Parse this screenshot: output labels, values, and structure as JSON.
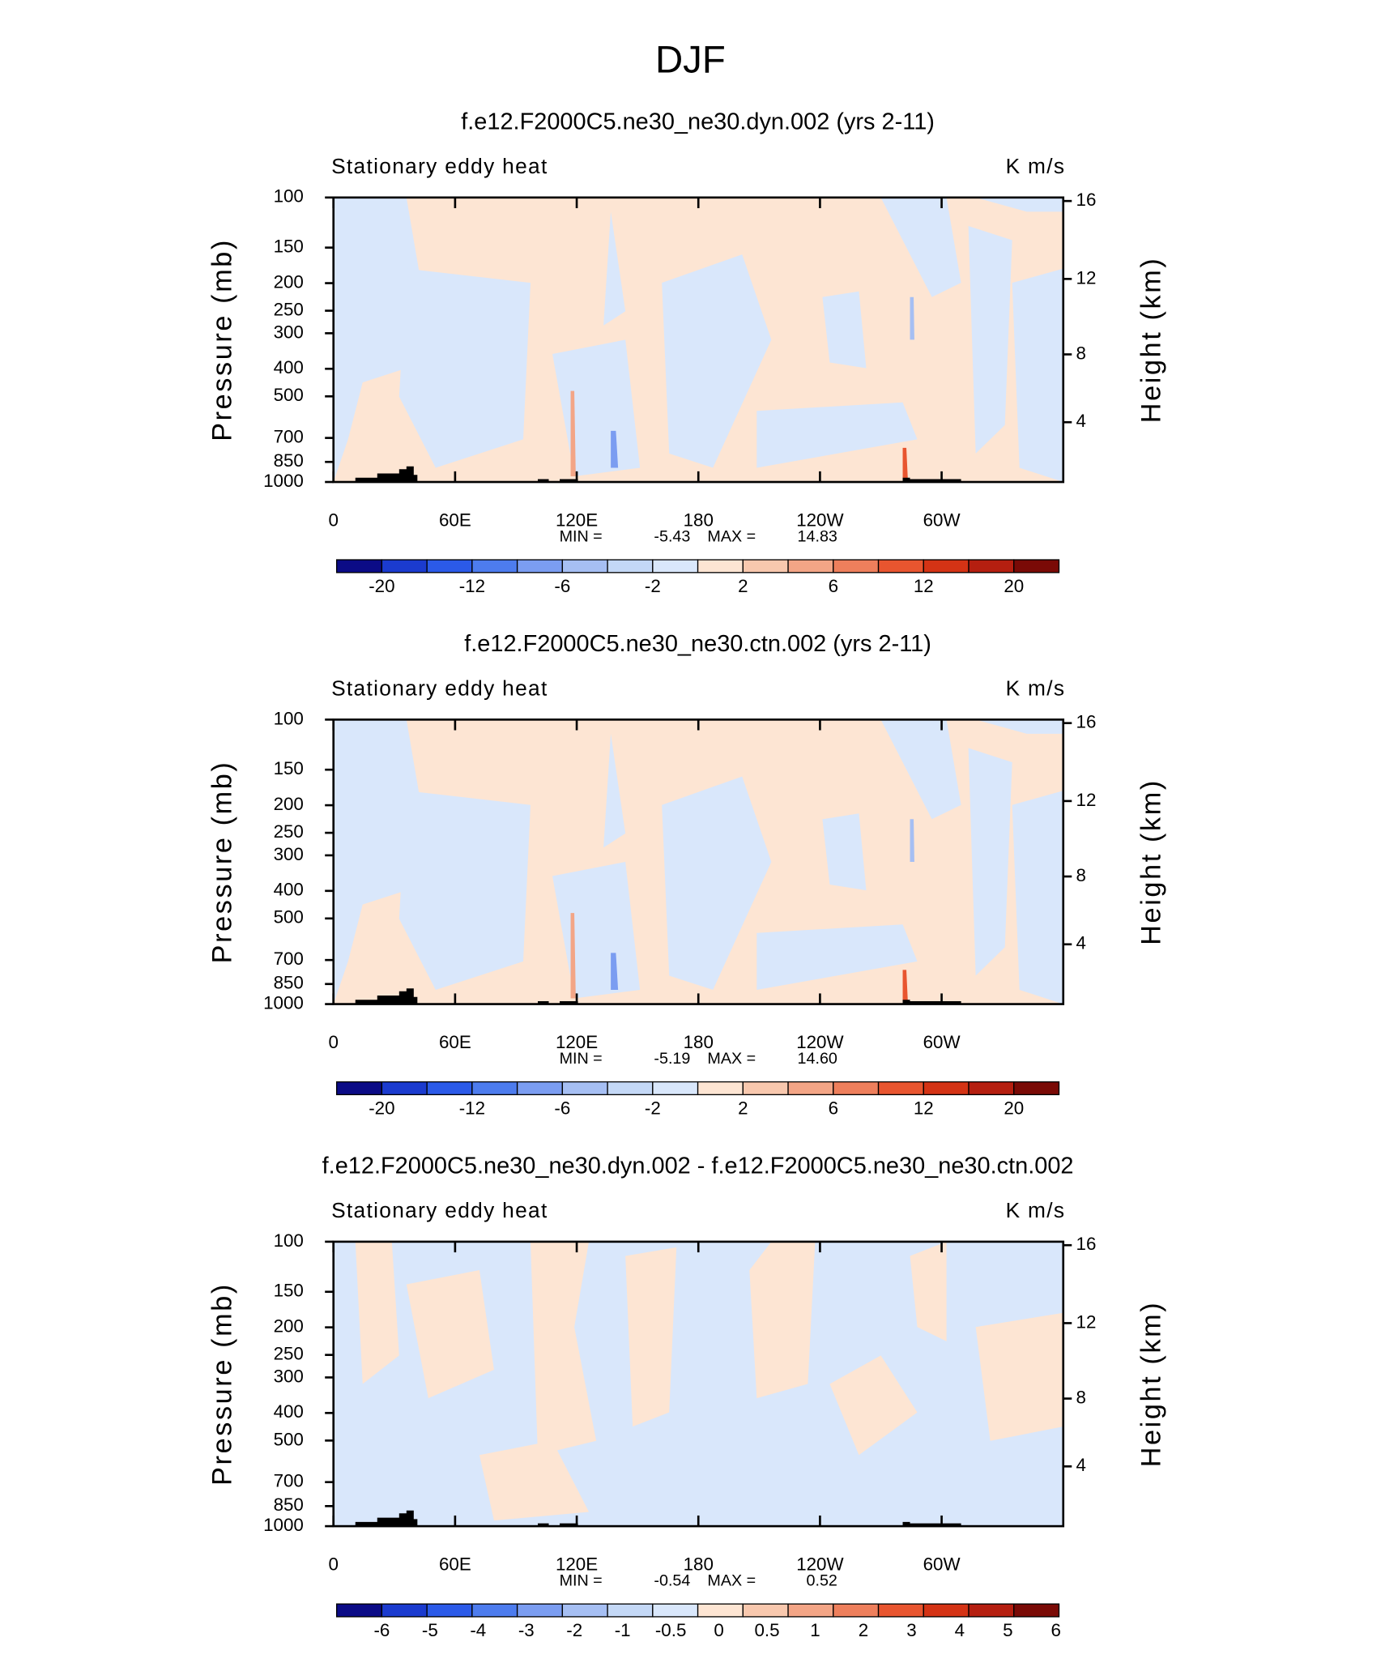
{
  "title": "DJF",
  "chart_data": [
    {
      "type": "contour",
      "title": "f.e12.F2000C5.ne30_ne30.dyn.002 (yrs 2-11)",
      "left_label": "Stationary eddy heat",
      "right_label": "K m/s",
      "ylabel": "Pressure (mb)",
      "y2label": "Height (km)",
      "ylim": [
        1000,
        100
      ],
      "ylog": true,
      "yticks": [
        100,
        150,
        200,
        250,
        300,
        400,
        500,
        700,
        850,
        1000
      ],
      "y2ticks": [
        4,
        8,
        12,
        16
      ],
      "xlim": [
        0,
        360
      ],
      "xticks": [
        0,
        {
          "value": 60,
          "label": "60E"
        },
        {
          "value": 120,
          "label": "120E"
        },
        180,
        {
          "value": 240,
          "label": "120W"
        },
        {
          "value": 300,
          "label": "60W"
        }
      ],
      "min_label": "MIN =",
      "min": -5.43,
      "max_label": "MAX =",
      "max": 14.83,
      "colorbar": {
        "colors": [
          "#0b0b86",
          "#1b3bcf",
          "#2b5ae8",
          "#4d7cee",
          "#7b9df1",
          "#a6bff3",
          "#c4d8f6",
          "#d9e7fb",
          "#fde5d3",
          "#f8c8ae",
          "#f3a586",
          "#ee7f5c",
          "#e8552f",
          "#d43315",
          "#b51f10",
          "#7a0a06"
        ],
        "labels": [
          -20,
          -12,
          -6,
          -2,
          2,
          6,
          12,
          20
        ]
      }
    },
    {
      "type": "contour",
      "title": "f.e12.F2000C5.ne30_ne30.ctn.002 (yrs 2-11)",
      "left_label": "Stationary eddy heat",
      "right_label": "K m/s",
      "ylabel": "Pressure (mb)",
      "y2label": "Height (km)",
      "ylim": [
        1000,
        100
      ],
      "ylog": true,
      "yticks": [
        100,
        150,
        200,
        250,
        300,
        400,
        500,
        700,
        850,
        1000
      ],
      "y2ticks": [
        4,
        8,
        12,
        16
      ],
      "xlim": [
        0,
        360
      ],
      "xticks": [
        0,
        {
          "value": 60,
          "label": "60E"
        },
        {
          "value": 120,
          "label": "120E"
        },
        180,
        {
          "value": 240,
          "label": "120W"
        },
        {
          "value": 300,
          "label": "60W"
        }
      ],
      "min_label": "MIN =",
      "min": -5.19,
      "max_label": "MAX =",
      "max": {
        "value": 14.6,
        "label": "14.60"
      },
      "colorbar": {
        "colors": [
          "#0b0b86",
          "#1b3bcf",
          "#2b5ae8",
          "#4d7cee",
          "#7b9df1",
          "#a6bff3",
          "#c4d8f6",
          "#d9e7fb",
          "#fde5d3",
          "#f8c8ae",
          "#f3a586",
          "#ee7f5c",
          "#e8552f",
          "#d43315",
          "#b51f10",
          "#7a0a06"
        ],
        "labels": [
          -20,
          -12,
          -6,
          -2,
          2,
          6,
          12,
          20
        ]
      }
    },
    {
      "type": "contour",
      "title": "f.e12.F2000C5.ne30_ne30.dyn.002 - f.e12.F2000C5.ne30_ne30.ctn.002",
      "left_label": "Stationary eddy heat",
      "right_label": "K m/s",
      "ylabel": "Pressure (mb)",
      "y2label": "Height (km)",
      "ylim": [
        1000,
        100
      ],
      "ylog": true,
      "yticks": [
        100,
        150,
        200,
        250,
        300,
        400,
        500,
        700,
        850,
        1000
      ],
      "y2ticks": [
        4,
        8,
        12,
        16
      ],
      "xlim": [
        0,
        360
      ],
      "xticks": [
        0,
        {
          "value": 60,
          "label": "60E"
        },
        {
          "value": 120,
          "label": "120E"
        },
        180,
        {
          "value": 240,
          "label": "120W"
        },
        {
          "value": 300,
          "label": "60W"
        }
      ],
      "min_label": "MIN =",
      "min": -0.54,
      "max_label": "MAX =",
      "max": 0.52,
      "colorbar": {
        "colors": [
          "#0b0b86",
          "#1b3bcf",
          "#2b5ae8",
          "#4d7cee",
          "#7b9df1",
          "#a6bff3",
          "#c4d8f6",
          "#d9e7fb",
          "#fde5d3",
          "#f8c8ae",
          "#f3a586",
          "#ee7f5c",
          "#e8552f",
          "#d43315",
          "#b51f10",
          "#7a0a06"
        ],
        "labels": [
          -6,
          -5,
          -4,
          -3,
          -2,
          -1,
          -0.5,
          0,
          0.5,
          1,
          2,
          3,
          4,
          5,
          6
        ]
      }
    }
  ]
}
